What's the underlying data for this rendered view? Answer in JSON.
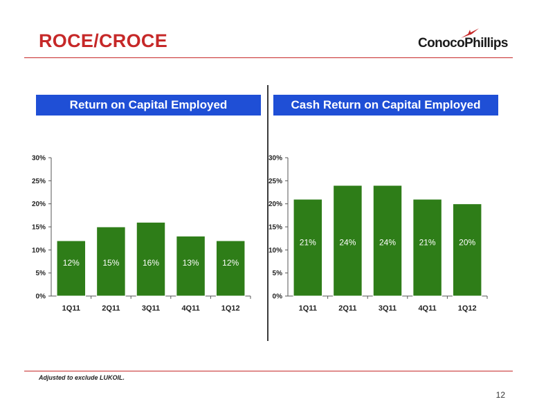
{
  "header": {
    "title": "ROCE/CROCE",
    "logo_text": "ConocoPhillips"
  },
  "footnote": "Adjusted to exclude LUKOIL.",
  "page_number": "12",
  "colors": {
    "title": "#c62828",
    "rule": "#c62828",
    "panel_bg": "#1f4fd6",
    "bar": "#2e7d18",
    "bar_border": "#ffffff",
    "value_label": "#ffffff"
  },
  "chart_data": [
    {
      "type": "bar",
      "title": "Return on Capital Employed",
      "categories": [
        "1Q11",
        "2Q11",
        "3Q11",
        "4Q11",
        "1Q12"
      ],
      "values": [
        12,
        15,
        16,
        13,
        12
      ],
      "value_labels": [
        "12%",
        "15%",
        "16%",
        "13%",
        "12%"
      ],
      "yticks": [
        "0%",
        "5%",
        "10%",
        "15%",
        "20%",
        "25%",
        "30%"
      ],
      "ylim": [
        0,
        30
      ],
      "grid": false,
      "label_position": "inside-bottom"
    },
    {
      "type": "bar",
      "title": "Cash Return on Capital Employed",
      "categories": [
        "1Q11",
        "2Q11",
        "3Q11",
        "4Q11",
        "1Q12"
      ],
      "values": [
        21,
        24,
        24,
        21,
        20
      ],
      "value_labels": [
        "21%",
        "24%",
        "24%",
        "21%",
        "20%"
      ],
      "yticks": [
        "0%",
        "5%",
        "10%",
        "15%",
        "20%",
        "25%",
        "30%"
      ],
      "ylim": [
        0,
        30
      ],
      "grid": false,
      "label_position": "inside-middle"
    }
  ]
}
